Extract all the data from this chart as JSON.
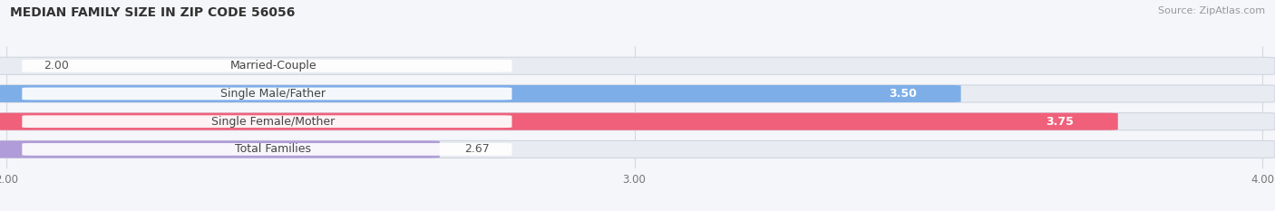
{
  "title": "MEDIAN FAMILY SIZE IN ZIP CODE 56056",
  "source": "Source: ZipAtlas.com",
  "categories": [
    "Married-Couple",
    "Single Male/Father",
    "Single Female/Mother",
    "Total Families"
  ],
  "values": [
    2.0,
    3.5,
    3.75,
    2.67
  ],
  "bar_colors": [
    "#60cece",
    "#7eaee8",
    "#f0607a",
    "#b09cd8"
  ],
  "bar_bg_color": "#e8ecf2",
  "xmin": 2.0,
  "xmax": 4.0,
  "xticks": [
    2.0,
    3.0,
    4.0
  ],
  "xtick_labels": [
    "2.00",
    "3.00",
    "4.00"
  ],
  "title_fontsize": 10,
  "source_fontsize": 8,
  "label_fontsize": 9,
  "value_fontsize": 9,
  "tick_fontsize": 8.5,
  "background_color": "#f5f6fa",
  "bar_height": 0.58,
  "grid_color": "#d5d8e0"
}
